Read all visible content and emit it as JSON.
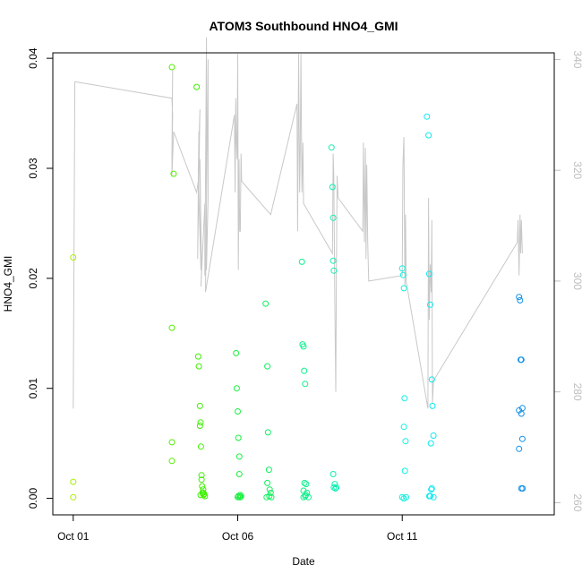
{
  "chart_data": {
    "type": "scatter",
    "title": "ATOM3 Southbound HNO4_GMI",
    "xlabel": "Date",
    "ylabel": "HNO4_GMI",
    "x_ticks": [
      "Oct 01",
      "Oct 06",
      "Oct 11"
    ],
    "x_tick_values": [
      0,
      5,
      10
    ],
    "xlim": [
      -0.62,
      14.62
    ],
    "ylim": [
      -0.0015,
      0.0405
    ],
    "y_ticks": [
      "0.00",
      "0.01",
      "0.02",
      "0.03",
      "0.04"
    ],
    "y_tick_values": [
      0.0,
      0.01,
      0.02,
      0.03,
      0.04
    ],
    "y2lim": [
      257.8,
      341.2
    ],
    "y2_ticks": [
      "260",
      "280",
      "300",
      "320",
      "340"
    ],
    "y2_tick_values": [
      260,
      280,
      300,
      320,
      340
    ],
    "grid": false,
    "colors": {
      "secondary_line": "#c8c8c8",
      "right_axis": "#bdbdbd",
      "axis": "#000000"
    },
    "scatter": {
      "name": "HNO4_GMI",
      "x": [
        0.0,
        0.0,
        0.0,
        3.0,
        3.0,
        3.0,
        3.0,
        3.05,
        3.75,
        3.8,
        3.82,
        3.85,
        3.85,
        3.87,
        3.88,
        3.9,
        3.9,
        3.92,
        3.95,
        3.96,
        3.98,
        3.93,
        3.87,
        3.95,
        4.0,
        4.95,
        4.97,
        5.0,
        5.02,
        5.05,
        5.05,
        5.07,
        5.1,
        5.08,
        5.0,
        5.02,
        5.06,
        5.85,
        5.9,
        5.92,
        5.95,
        5.9,
        5.97,
        6.0,
        6.02,
        5.88,
        5.96,
        6.95,
        6.97,
        7.0,
        7.02,
        7.05,
        7.03,
        7.0,
        7.08,
        7.1,
        7.05,
        7.15,
        7.0,
        7.07,
        7.85,
        7.88,
        7.9,
        7.9,
        7.92,
        7.9,
        7.95,
        7.92,
        7.97,
        8.0,
        10.0,
        10.03,
        10.05,
        10.07,
        10.05,
        10.1,
        10.08,
        10.12,
        10.0,
        10.05,
        10.75,
        10.8,
        10.82,
        10.85,
        10.9,
        10.92,
        10.95,
        10.87,
        10.9,
        10.88,
        10.85,
        10.82,
        10.95,
        13.55,
        13.58,
        13.6,
        13.62,
        13.55,
        13.65,
        13.62,
        13.65,
        13.55,
        13.62,
        13.66
      ],
      "y": [
        0.0219,
        0.0015,
        0.0001,
        0.0392,
        0.0155,
        0.0051,
        0.0034,
        0.0295,
        0.0374,
        0.0129,
        0.012,
        0.0084,
        0.0066,
        0.0069,
        0.0047,
        0.0021,
        0.0017,
        0.0011,
        0.0005,
        0.0003,
        0.0004,
        0.0005,
        0.0003,
        0.0008,
        0.0002,
        0.0132,
        0.01,
        0.0079,
        0.0055,
        0.0038,
        0.0022,
        0.0003,
        0.0002,
        0.0001,
        0.0001,
        0.0002,
        0.0001,
        0.0177,
        0.012,
        0.006,
        0.0026,
        0.0014,
        0.0008,
        0.0005,
        0.0001,
        0.0001,
        0.0002,
        0.0215,
        0.014,
        0.0138,
        0.0116,
        0.0104,
        0.0014,
        0.0007,
        0.0013,
        0.0005,
        0.0002,
        0.0001,
        0.0001,
        0.0003,
        0.0319,
        0.0283,
        0.0255,
        0.0216,
        0.0207,
        0.0022,
        0.0013,
        0.001,
        0.0009,
        0.001,
        0.0209,
        0.0203,
        0.0191,
        0.0091,
        0.0065,
        0.0052,
        0.0025,
        0.0001,
        0.0001,
        0.0,
        0.0347,
        0.033,
        0.0204,
        0.0176,
        0.0108,
        0.0084,
        0.0057,
        0.005,
        0.0009,
        0.0008,
        0.0002,
        0.0002,
        0.0001,
        0.0183,
        0.018,
        0.0126,
        0.0126,
        0.008,
        0.0082,
        0.0077,
        0.0054,
        0.0045,
        0.0009,
        0.0009
      ],
      "colors": [
        "#a8f000",
        "#a8f000",
        "#a8f000",
        "#55ee00",
        "#55ee00",
        "#55ee00",
        "#55ee00",
        "#55ee00",
        "#3ef000",
        "#3ef000",
        "#3ef000",
        "#3ef000",
        "#3ef000",
        "#3ef000",
        "#3ef000",
        "#3ef000",
        "#3ef000",
        "#3ef000",
        "#3ef000",
        "#3ef000",
        "#3ef000",
        "#3ef000",
        "#3ef000",
        "#3ef000",
        "#3ef000",
        "#1af040",
        "#1af040",
        "#1af040",
        "#1af040",
        "#1af040",
        "#1af040",
        "#1af040",
        "#1af040",
        "#1af040",
        "#1af040",
        "#1af040",
        "#1af040",
        "#12f060",
        "#12f060",
        "#12f060",
        "#12f060",
        "#12f060",
        "#12f060",
        "#12f060",
        "#12f060",
        "#12f060",
        "#12f060",
        "#10f08c",
        "#10f08c",
        "#10f08c",
        "#10f08c",
        "#10f08c",
        "#10f08c",
        "#10f08c",
        "#10f08c",
        "#10f08c",
        "#10f08c",
        "#10f08c",
        "#10f08c",
        "#10f08c",
        "#10f0b0",
        "#10f0b0",
        "#10f0b0",
        "#10f0b0",
        "#10f0b0",
        "#10f0b0",
        "#10f0b0",
        "#10f0b0",
        "#10f0b0",
        "#10f0b0",
        "#10f0e0",
        "#10f0e0",
        "#10f0e0",
        "#10f0e0",
        "#10f0e0",
        "#10f0e0",
        "#10f0e0",
        "#10f0e0",
        "#10f0e0",
        "#10f0e0",
        "#10e8f0",
        "#10e8f0",
        "#10e8f0",
        "#10e8f0",
        "#10e8f0",
        "#10e8f0",
        "#10e8f0",
        "#10e8f0",
        "#10e8f0",
        "#10e8f0",
        "#10e8f0",
        "#10e8f0",
        "#10e8f0",
        "#1090e8",
        "#1090e8",
        "#1090e8",
        "#1090e8",
        "#1090e8",
        "#1090e8",
        "#1090e8",
        "#1090e8",
        "#1090e8",
        "#1090e8",
        "#1090e8"
      ]
    },
    "secondary_series": {
      "type": "line",
      "axis": "right",
      "x": [
        0.0,
        0.05,
        3.0,
        3.02,
        3.0,
        3.02,
        3.0,
        3.05,
        3.75,
        3.8,
        3.82,
        3.78,
        3.85,
        3.8,
        3.83,
        3.88,
        3.85,
        3.9,
        3.88,
        4.0,
        4.0,
        4.05,
        4.05,
        4.1,
        4.1,
        4.02,
        4.9,
        4.92,
        4.94,
        4.96,
        4.98,
        5.0,
        5.02,
        5.04,
        5.06,
        5.08,
        5.1,
        5.12,
        6.0,
        6.8,
        6.82,
        6.85,
        6.88,
        6.9,
        6.92,
        6.95,
        6.98,
        7.0,
        7.88,
        7.9,
        7.92,
        7.95,
        7.98,
        8.0,
        8.02,
        8.05,
        8.8,
        8.82,
        8.85,
        8.88,
        8.9,
        8.92,
        8.95,
        8.98,
        10.0,
        10.02,
        10.05,
        10.08,
        10.1,
        10.12,
        10.78,
        10.8,
        10.82,
        10.85,
        10.88,
        10.9,
        10.92,
        10.95,
        13.5,
        13.52,
        13.55,
        13.58,
        13.6,
        13.62,
        13.65
      ],
      "y": [
        277,
        336,
        333,
        330,
        322,
        338,
        319,
        327,
        316,
        318,
        327,
        304,
        331,
        320,
        313,
        302,
        322,
        302,
        299,
        314,
        301,
        344,
        302,
        315,
        340,
        298,
        330,
        316,
        333,
        325,
        322,
        341,
        302,
        322,
        309,
        309,
        323,
        318,
        312,
        332,
        309,
        341,
        316,
        323,
        341,
        316,
        325,
        314,
        305,
        323,
        319,
        297,
        280,
        301,
        319,
        315,
        309,
        325,
        307,
        324,
        304,
        321,
        307,
        300,
        301,
        321,
        326,
        299,
        312,
        300,
        277,
        315,
        293,
        303,
        298,
        311,
        278,
        282,
        307,
        311,
        301,
        312,
        305,
        311,
        305
      ]
    }
  }
}
